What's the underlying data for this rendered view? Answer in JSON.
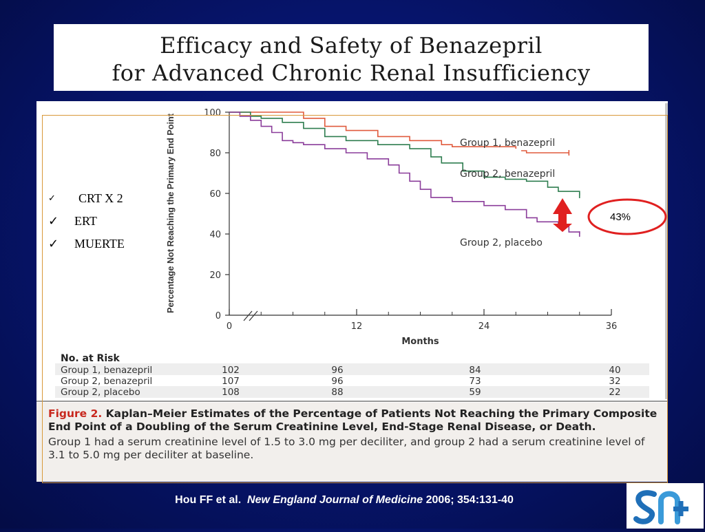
{
  "slide": {
    "title_line1": "Efficacy and Safety of Benazepril",
    "title_line2": "for Advanced Chronic Renal Insufficiency",
    "checklist": [
      "CRT X 2",
      "ERT",
      "MUERTE"
    ],
    "check_glyph": "✓",
    "callout": "43%",
    "citation_authors": "Hou FF et al.",
    "citation_journal": "New England Journal of Medicine",
    "citation_ref": "2006; 354:131-40",
    "logo_icon": "sn-logo-icon",
    "colors": {
      "background": "#06146b",
      "callout_ring": "#e02020",
      "arrow": "#e02020",
      "benazepril_g1": "#e05a3c",
      "benazepril_g2": "#2e7d4f",
      "placebo_g2": "#8a3c9a",
      "figure_label": "#c8281e"
    }
  },
  "caption": {
    "figure_label": "Figure 2.",
    "bold_text": "Kaplan–Meier Estimates of the Percentage of Patients Not Reaching the Primary Composite End Point of a Doubling of the Serum Creatinine Level, End-Stage Renal Disease, or Death.",
    "regular_text": "Group 1 had a serum creatinine level of 1.5 to 3.0 mg per deciliter, and group 2 had a serum creatinine level of 3.1 to 5.0 mg per deciliter at baseline."
  },
  "chart_data": {
    "type": "line",
    "ylabel": "Percentage Not Reaching the Primary End Point",
    "xlabel": "Months",
    "xlim": [
      0,
      36
    ],
    "ylim": [
      0,
      100
    ],
    "xticks": [
      0,
      12,
      24,
      36
    ],
    "yticks": [
      0,
      20,
      40,
      60,
      80,
      100
    ],
    "grid": false,
    "series": [
      {
        "name": "Group 1, benazepril",
        "color": "#e05a3c",
        "points": [
          [
            0,
            100
          ],
          [
            6,
            100
          ],
          [
            7,
            97
          ],
          [
            9,
            93
          ],
          [
            11,
            91
          ],
          [
            14,
            88
          ],
          [
            17,
            86
          ],
          [
            20,
            84
          ],
          [
            21,
            83
          ],
          [
            27,
            82
          ]
        ],
        "tail": [
          [
            27.5,
            81
          ],
          [
            28,
            80
          ],
          [
            32,
            80
          ]
        ]
      },
      {
        "name": "Group 2, benazepril",
        "color": "#2e7d4f",
        "points": [
          [
            0,
            100
          ],
          [
            2,
            98
          ],
          [
            3,
            97
          ],
          [
            5,
            95
          ],
          [
            7,
            92
          ],
          [
            9,
            88
          ],
          [
            11,
            86
          ],
          [
            14,
            84
          ],
          [
            17,
            82
          ],
          [
            19,
            78
          ],
          [
            20,
            75
          ],
          [
            22,
            71
          ],
          [
            24,
            68
          ],
          [
            26,
            67
          ],
          [
            28,
            66
          ],
          [
            30,
            63
          ],
          [
            31,
            61
          ],
          [
            33,
            59
          ]
        ]
      },
      {
        "name": "Group 2, placebo",
        "color": "#8a3c9a",
        "points": [
          [
            0,
            100
          ],
          [
            1,
            98
          ],
          [
            2,
            96
          ],
          [
            3,
            93
          ],
          [
            4,
            90
          ],
          [
            5,
            86
          ],
          [
            6,
            85
          ],
          [
            7,
            84
          ],
          [
            9,
            82
          ],
          [
            11,
            80
          ],
          [
            13,
            77
          ],
          [
            15,
            74
          ],
          [
            16,
            70
          ],
          [
            17,
            66
          ],
          [
            18,
            62
          ],
          [
            19,
            58
          ],
          [
            21,
            56
          ],
          [
            24,
            54
          ],
          [
            26,
            52
          ],
          [
            28,
            48
          ],
          [
            29,
            46
          ],
          [
            31,
            44
          ],
          [
            32,
            41
          ],
          [
            33,
            40
          ]
        ]
      }
    ],
    "risk_table": {
      "title": "No. at Risk",
      "rows": [
        {
          "label": "Group 1, benazepril",
          "values": [
            102,
            96,
            84,
            40
          ]
        },
        {
          "label": "Group 2, benazepril",
          "values": [
            107,
            96,
            73,
            32
          ]
        },
        {
          "label": "Group 2, placebo",
          "values": [
            108,
            88,
            59,
            22
          ]
        }
      ]
    }
  }
}
